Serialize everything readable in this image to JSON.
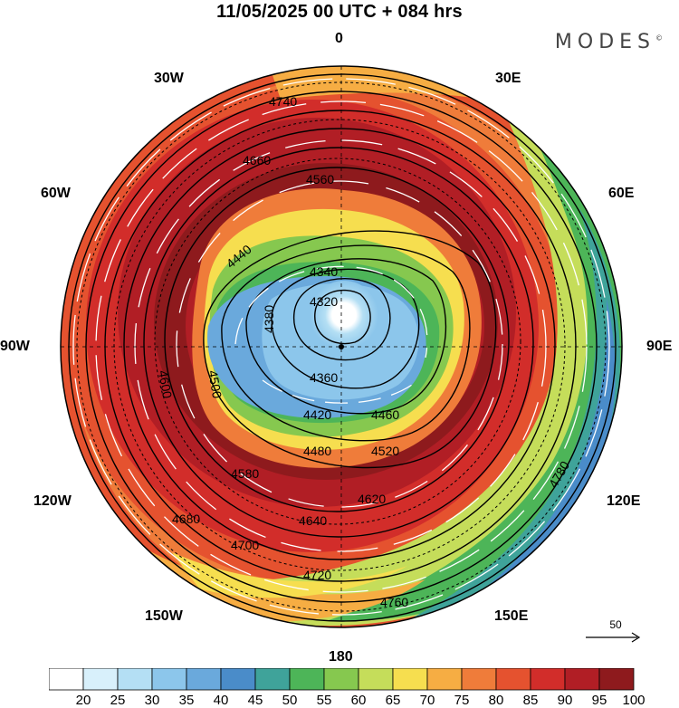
{
  "header": {
    "title": "11/05/2025  00 UTC  + 084 hrs",
    "brand": "MODES",
    "brand_mark": "©"
  },
  "map": {
    "projection": "north-polar-stereographic",
    "longitude_labels": {
      "n": "0",
      "ne": "30E",
      "ene": "60E",
      "e": "90E",
      "ese": "120E",
      "se": "150E",
      "s": "180",
      "sw": "150W",
      "wsw": "120W",
      "w": "90W",
      "wnw": "60W",
      "nw": "30W"
    },
    "fill_variable": "wind speed (shaded)",
    "contour_variable": "geopotential height (contours)",
    "contour_labels": [
      "4320",
      "4340",
      "4360",
      "4380",
      "4420",
      "4440",
      "4460",
      "4480",
      "4500",
      "4520",
      "4560",
      "4580",
      "4600",
      "4620",
      "4640",
      "4660",
      "4680",
      "4700",
      "4720",
      "4740",
      "4760",
      "4780"
    ],
    "reference_vector": {
      "label": "50"
    }
  },
  "colorbar": {
    "ticks": [
      "20",
      "25",
      "30",
      "35",
      "40",
      "45",
      "50",
      "55",
      "60",
      "65",
      "70",
      "75",
      "80",
      "85",
      "90",
      "95",
      "100"
    ],
    "colors": [
      "#ffffff",
      "#d8f0fb",
      "#b4dff4",
      "#8cc6eb",
      "#6aa9dc",
      "#4a8cc9",
      "#3fa39a",
      "#4db558",
      "#86c84f",
      "#c5dd5a",
      "#f6de4f",
      "#f6ad43",
      "#ef7c3a",
      "#e5522f",
      "#d22d2a",
      "#b11e25",
      "#8e1a1d"
    ]
  }
}
